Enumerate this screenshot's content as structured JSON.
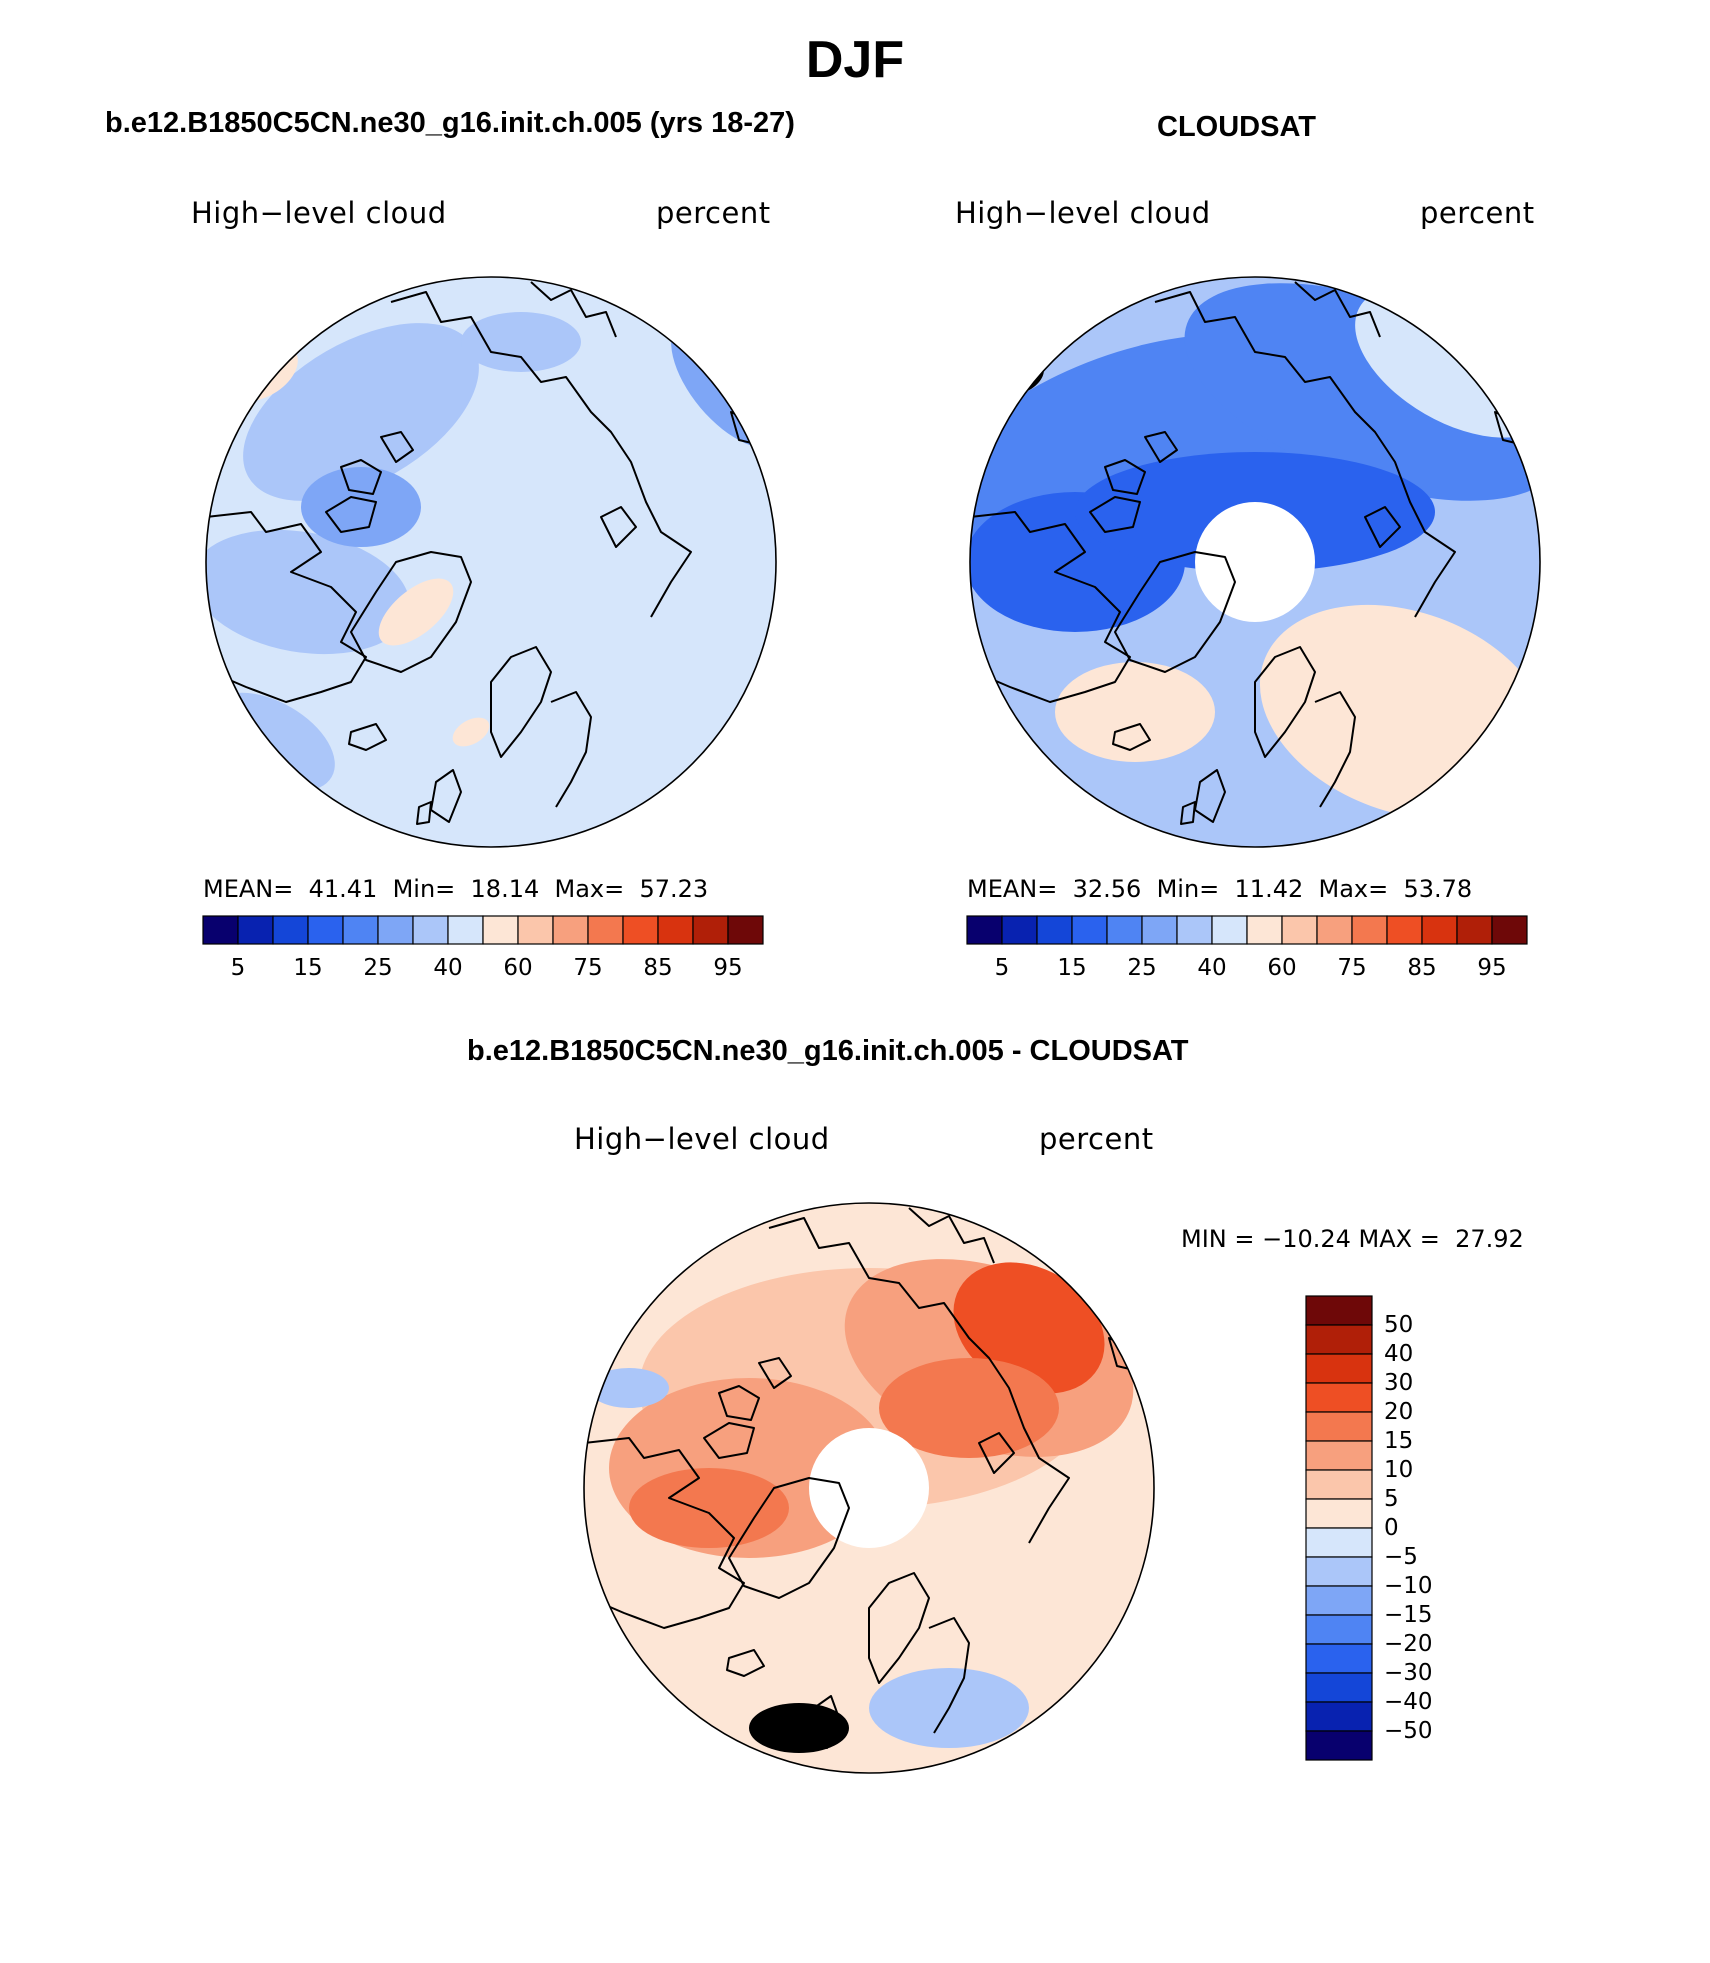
{
  "title": "DJF",
  "panels": [
    {
      "id": "model",
      "subtitle": "b.e12.B1850C5CN.ne30_g16.init.ch.005 (yrs 18-27)",
      "variable": "High−level cloud",
      "units": "percent",
      "stats": "MEAN=  41.41  Min=  18.14  Max=  57.23",
      "pole_hole": false
    },
    {
      "id": "obs",
      "subtitle": "CLOUDSAT",
      "variable": "High−level cloud",
      "units": "percent",
      "stats": "MEAN=  32.56  Min=  11.42  Max=  53.78",
      "pole_hole": true
    },
    {
      "id": "diff",
      "subtitle": "b.e12.B1850C5CN.ne30_g16.init.ch.005 - CLOUDSAT",
      "variable": "High−level cloud",
      "units": "percent",
      "stats": "MIN = −10.24 MAX =  27.92",
      "pole_hole": true
    }
  ],
  "colorbars": {
    "absolute": {
      "colors": [
        "#08006e",
        "#0822b0",
        "#1446d8",
        "#2a62ee",
        "#4f84f3",
        "#7ea6f6",
        "#abc6f9",
        "#d6e6fb",
        "#fde6d6",
        "#fbc6ab",
        "#f7a07e",
        "#f3784f",
        "#ee4f24",
        "#d8330f",
        "#b01f08",
        "#6e0808"
      ],
      "labels": [
        "5",
        "15",
        "25",
        "40",
        "60",
        "75",
        "85",
        "95"
      ]
    },
    "difference": {
      "colors": [
        "#6e0808",
        "#b01f08",
        "#d8330f",
        "#ee4f24",
        "#f3784f",
        "#f7a07e",
        "#fbc6ab",
        "#fde6d6",
        "#d6e6fb",
        "#abc6f9",
        "#7ea6f6",
        "#4f84f3",
        "#2a62ee",
        "#1446d8",
        "#0822b0",
        "#08006e"
      ],
      "labels": [
        "50",
        "40",
        "30",
        "20",
        "15",
        "10",
        "5",
        "0",
        "−5",
        "−10",
        "−15",
        "−20",
        "−30",
        "−40",
        "−50"
      ]
    }
  },
  "map_fills": {
    "model": {
      "base": "#d6e6fb",
      "patches": [
        "#abc6f9",
        "#7ea6f6",
        "#fde6d6"
      ]
    },
    "obs": {
      "base": "#abc6f9",
      "patches": [
        "#7ea6f6",
        "#4f84f3",
        "#2a62ee",
        "#d6e6fb",
        "#fde6d6"
      ]
    },
    "diff": {
      "base": "#fde6d6",
      "patches": [
        "#fbc6ab",
        "#f7a07e",
        "#f3784f",
        "#ee4f24",
        "#d6e6fb",
        "#abc6f9"
      ]
    }
  }
}
